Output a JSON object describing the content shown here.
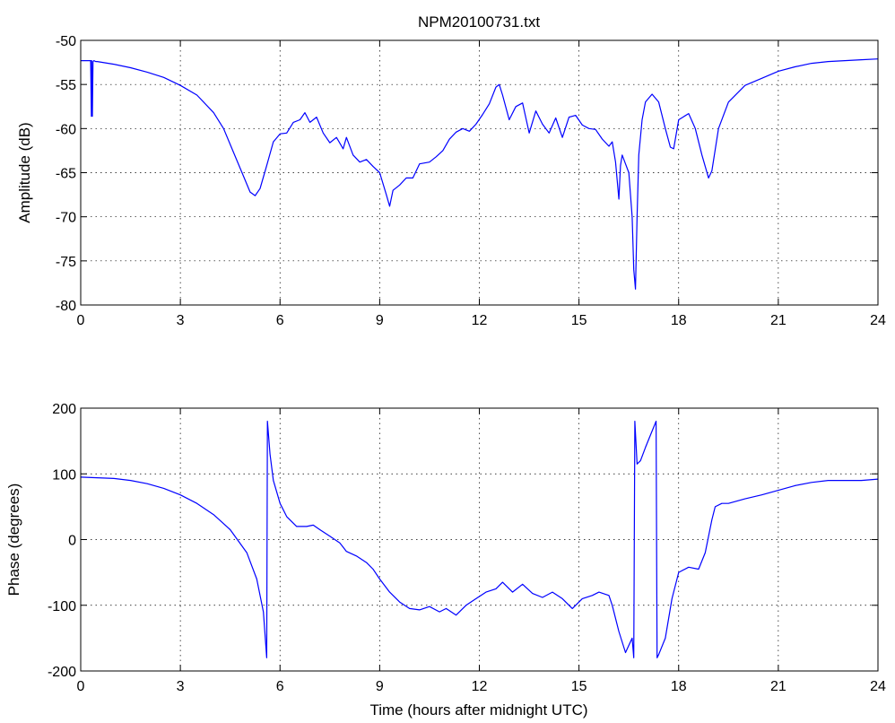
{
  "figure_title": "NPM20100731.txt",
  "chart_data": [
    {
      "type": "line",
      "title": "NPM20100731.txt",
      "xlabel": "",
      "ylabel": "Amplitude (dB)",
      "xlim": [
        0,
        24
      ],
      "ylim": [
        -80,
        -50
      ],
      "xticks": [
        0,
        3,
        6,
        9,
        12,
        15,
        18,
        21,
        24
      ],
      "yticks": [
        -80,
        -75,
        -70,
        -65,
        -60,
        -55,
        -50
      ],
      "grid": true,
      "line_color": "#0000ff",
      "series": [
        {
          "x": [
            0,
            0.3,
            0.32,
            0.33,
            0.35,
            0.37,
            0.4,
            0.45,
            0.5,
            1.0,
            1.5,
            2.0,
            2.5,
            3.0,
            3.5,
            4.0,
            4.3,
            4.6,
            4.9,
            5.1,
            5.25,
            5.4,
            5.6,
            5.8,
            6.0,
            6.2,
            6.4,
            6.6,
            6.75,
            6.9,
            7.1,
            7.3,
            7.5,
            7.7,
            7.9,
            8.0,
            8.2,
            8.4,
            8.6,
            8.8,
            9.0,
            9.2,
            9.3,
            9.4,
            9.6,
            9.8,
            10.0,
            10.2,
            10.5,
            10.7,
            10.9,
            11.1,
            11.3,
            11.5,
            11.7,
            11.9,
            12.1,
            12.3,
            12.5,
            12.6,
            12.7,
            12.9,
            13.1,
            13.3,
            13.5,
            13.7,
            13.9,
            14.1,
            14.3,
            14.5,
            14.7,
            14.9,
            15.1,
            15.3,
            15.5,
            15.7,
            15.9,
            16.0,
            16.1,
            16.2,
            16.25,
            16.3,
            16.4,
            16.5,
            16.6,
            16.65,
            16.7,
            16.75,
            16.8,
            16.9,
            17.0,
            17.2,
            17.4,
            17.6,
            17.75,
            17.85,
            18.0,
            18.3,
            18.5,
            18.7,
            18.9,
            19.0,
            19.2,
            19.5,
            20.0,
            20.5,
            21.0,
            21.5,
            22.0,
            22.5,
            23.0,
            23.5,
            24.0
          ],
          "y": [
            -52.3,
            -52.3,
            -58.6,
            -52.3,
            -58.6,
            -52.4,
            -52.3,
            -52.4,
            -52.4,
            -52.7,
            -53.1,
            -53.6,
            -54.2,
            -55.1,
            -56.2,
            -58.2,
            -60.0,
            -62.7,
            -65.4,
            -67.2,
            -67.6,
            -66.8,
            -64.2,
            -61.5,
            -60.6,
            -60.5,
            -59.3,
            -59.0,
            -58.2,
            -59.3,
            -58.7,
            -60.5,
            -61.6,
            -61.0,
            -62.3,
            -61.0,
            -63.0,
            -63.8,
            -63.5,
            -64.3,
            -65.0,
            -67.5,
            -68.8,
            -67.0,
            -66.4,
            -65.6,
            -65.6,
            -64.0,
            -63.8,
            -63.2,
            -62.5,
            -61.2,
            -60.4,
            -60.0,
            -60.3,
            -59.5,
            -58.4,
            -57.2,
            -55.3,
            -55.0,
            -56.2,
            -59.0,
            -57.5,
            -57.1,
            -60.5,
            -58.0,
            -59.5,
            -60.5,
            -58.8,
            -61.0,
            -58.7,
            -58.5,
            -59.6,
            -60.0,
            -60.1,
            -61.2,
            -62.0,
            -61.5,
            -63.8,
            -68.0,
            -64.2,
            -63.0,
            -64.0,
            -65.0,
            -70.0,
            -76.0,
            -78.2,
            -70.0,
            -63.0,
            -59.0,
            -57.0,
            -56.1,
            -57.0,
            -60.0,
            -62.1,
            -62.3,
            -59.0,
            -58.3,
            -60.0,
            -63.0,
            -65.6,
            -64.8,
            -60.0,
            -57.0,
            -55.1,
            -54.3,
            -53.5,
            -53.0,
            -52.6,
            -52.4,
            -52.3,
            -52.2,
            -52.1
          ]
        }
      ]
    },
    {
      "type": "line",
      "title": "",
      "xlabel": "Time (hours after midnight UTC)",
      "ylabel": "Phase (degrees)",
      "xlim": [
        0,
        24
      ],
      "ylim": [
        -200,
        200
      ],
      "xticks": [
        0,
        3,
        6,
        9,
        12,
        15,
        18,
        21,
        24
      ],
      "yticks": [
        -200,
        -100,
        0,
        100,
        200
      ],
      "grid": true,
      "line_color": "#0000ff",
      "series": [
        {
          "x": [
            0,
            0.5,
            1.0,
            1.5,
            2.0,
            2.5,
            3.0,
            3.5,
            4.0,
            4.5,
            5.0,
            5.3,
            5.5,
            5.6,
            5.62,
            5.7,
            5.8,
            6.0,
            6.2,
            6.5,
            6.8,
            7.0,
            7.2,
            7.5,
            7.8,
            8.0,
            8.3,
            8.6,
            8.8,
            9.0,
            9.3,
            9.6,
            9.9,
            10.2,
            10.5,
            10.8,
            11.0,
            11.3,
            11.6,
            11.9,
            12.2,
            12.5,
            12.7,
            13.0,
            13.3,
            13.6,
            13.9,
            14.2,
            14.5,
            14.8,
            15.1,
            15.4,
            15.6,
            15.9,
            16.0,
            16.2,
            16.4,
            16.6,
            16.65,
            16.68,
            16.75,
            16.85,
            17.0,
            17.2,
            17.32,
            17.35,
            17.4,
            17.6,
            17.8,
            18.0,
            18.3,
            18.6,
            18.8,
            19.0,
            19.1,
            19.3,
            19.5,
            20.0,
            20.5,
            21.0,
            21.5,
            22.0,
            22.5,
            23.0,
            23.5,
            24.0
          ],
          "y": [
            95,
            94,
            93,
            90,
            85,
            78,
            68,
            55,
            38,
            15,
            -20,
            -60,
            -110,
            -180,
            180,
            130,
            90,
            55,
            35,
            20,
            20,
            22,
            15,
            5,
            -5,
            -18,
            -25,
            -35,
            -45,
            -60,
            -80,
            -95,
            -105,
            -107,
            -102,
            -110,
            -105,
            -115,
            -100,
            -90,
            -80,
            -75,
            -65,
            -80,
            -68,
            -82,
            -88,
            -80,
            -90,
            -105,
            -90,
            -85,
            -80,
            -85,
            -100,
            -140,
            -172,
            -150,
            -180,
            180,
            115,
            120,
            140,
            165,
            180,
            -180,
            -175,
            -150,
            -90,
            -50,
            -42,
            -45,
            -20,
            30,
            50,
            55,
            55,
            62,
            68,
            75,
            82,
            87,
            90,
            90,
            90,
            92
          ]
        }
      ]
    }
  ]
}
